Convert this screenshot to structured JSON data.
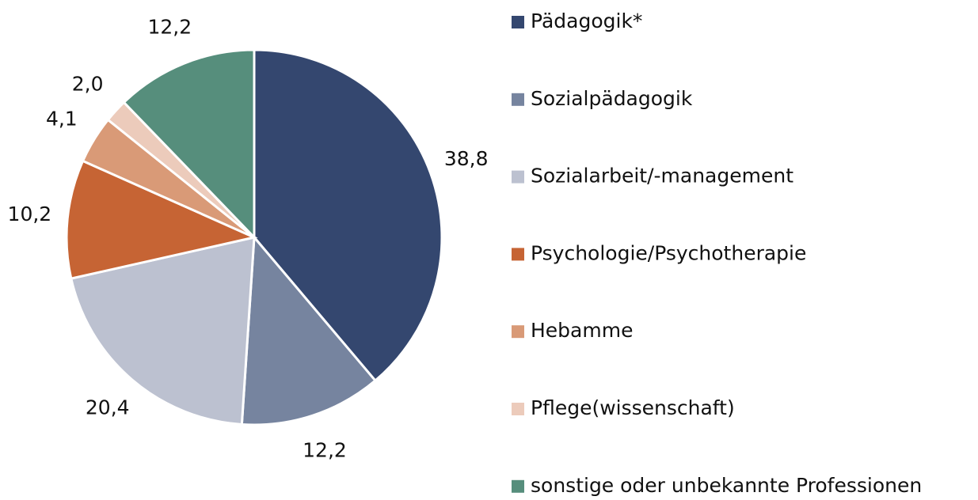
{
  "chart_data": {
    "type": "pie",
    "categories": [
      "Pädagogik*",
      "Sozialpädagogik",
      "Sozialarbeit/-management",
      "Psychologie/Psychotherapie",
      "Hebamme",
      "Pflege(wissenschaft)",
      "sonstige oder unbekannte Professionen"
    ],
    "values": [
      38.8,
      12.2,
      20.4,
      10.2,
      4.1,
      2.0,
      12.2
    ],
    "value_labels": [
      "38,8",
      "12,2",
      "20,4",
      "10,2",
      "4,1",
      "2,0",
      "12,2"
    ],
    "colors": [
      "#34476f",
      "#76849f",
      "#bcc1d0",
      "#c66434",
      "#d99a77",
      "#eccbbb",
      "#568e7c"
    ],
    "legend": "right"
  }
}
